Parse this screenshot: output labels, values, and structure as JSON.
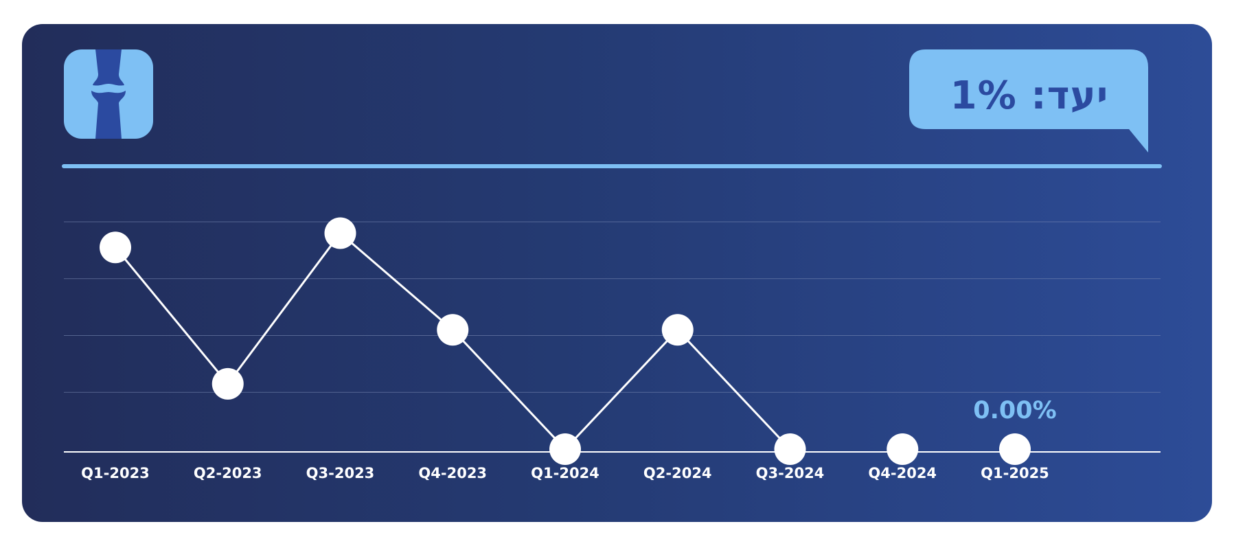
{
  "header": {
    "goal_text": "יעד: 1%",
    "logo_icon": "knee-joint-icon"
  },
  "colors": {
    "card_left": "#222d5a",
    "card_right": "#2d4c97",
    "accent": "#7ec0f4",
    "accent_dark": "#2b4aa0",
    "line": "#ffffff"
  },
  "chart_data": {
    "type": "line",
    "categories": [
      "Q1-2023",
      "Q2-2023",
      "Q3-2023",
      "Q4-2023",
      "Q1-2024",
      "Q2-2024",
      "Q3-2024",
      "Q4-2024",
      "Q1-2025"
    ],
    "series": [
      {
        "values": [
          3.55,
          1.15,
          3.8,
          2.1,
          0.0,
          2.1,
          0.0,
          null,
          null
        ]
      }
    ],
    "markers_only_at": [
      "Q4-2024",
      "Q1-2025"
    ],
    "data_labels": [
      {
        "category": "Q1-2025",
        "text": "0.00%"
      }
    ],
    "ylim": [
      0,
      4
    ],
    "grid": true,
    "legend": "none",
    "y_tick_labels_shown": false
  }
}
